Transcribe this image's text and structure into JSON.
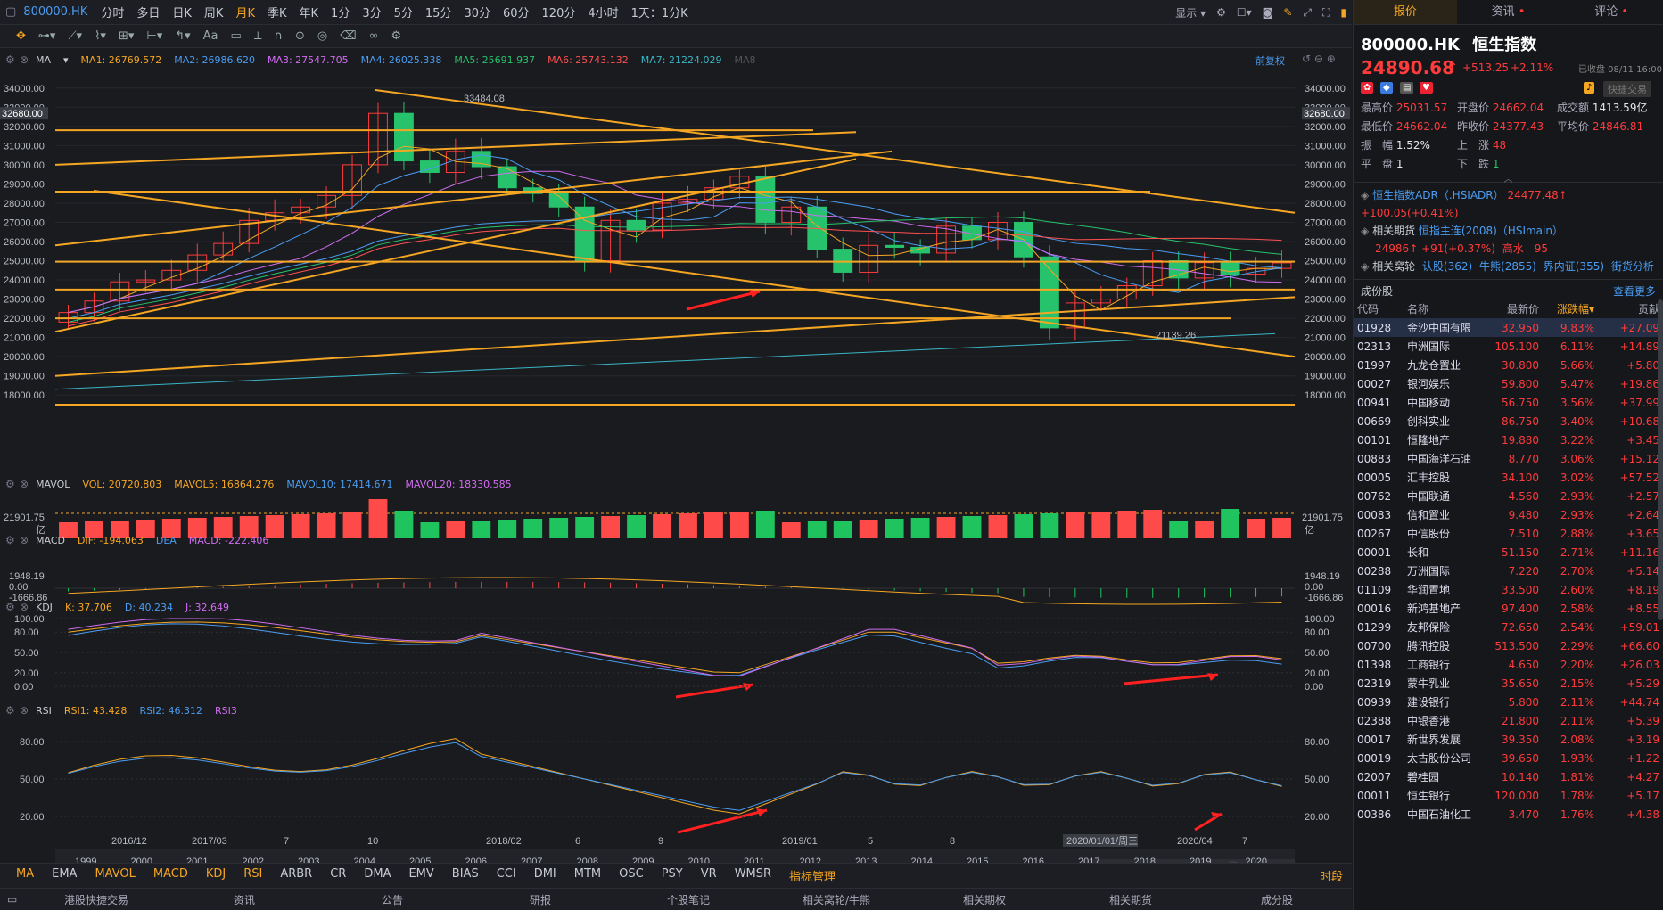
{
  "toolbar": {
    "code": "800000.HK",
    "periods": [
      "分时",
      "多日",
      "日K",
      "周K",
      "月K",
      "季K",
      "年K",
      "1分",
      "3分",
      "5分",
      "15分",
      "30分",
      "60分",
      "120分",
      "4小时",
      "1天：1分K"
    ],
    "active_period": "月K",
    "display_label": "显示"
  },
  "main_pane": {
    "label": "MA",
    "ma": [
      {
        "name": "MA1",
        "value": "26769.572",
        "color": "#f5a623"
      },
      {
        "name": "MA2",
        "value": "26986.620",
        "color": "#4a9df2"
      },
      {
        "name": "MA3",
        "value": "27547.705",
        "color": "#d06df0"
      },
      {
        "name": "MA4",
        "value": "26025.338",
        "color": "#4a9df2"
      },
      {
        "name": "MA5",
        "value": "25691.937",
        "color": "#27c26c"
      },
      {
        "name": "MA6",
        "value": "25743.132",
        "color": "#ff5050"
      },
      {
        "name": "MA7",
        "value": "21224.029",
        "color": "#39b6c6"
      },
      {
        "name": "MA8",
        "value": "",
        "color": "#555"
      }
    ],
    "adjust": "前复权",
    "y_ticks": [
      "34000.00",
      "33000.00",
      "32000.00",
      "31000.00",
      "30000.00",
      "29000.00",
      "28000.00",
      "27000.00",
      "26000.00",
      "25000.00",
      "24000.00",
      "23000.00",
      "22000.00",
      "21000.00",
      "20000.00",
      "19000.00",
      "18000.00"
    ],
    "current_price_tag": "32680.00",
    "high_label": "33484.08",
    "low_label": "21139.26"
  },
  "mavol_pane": {
    "label": "MAVOL",
    "items": [
      {
        "name": "VOL",
        "value": "20720.803",
        "color": "#f5a623"
      },
      {
        "name": "MAVOL5",
        "value": "16864.276",
        "color": "#f5a623"
      },
      {
        "name": "MAVOL10",
        "value": "17414.671",
        "color": "#4a9df2"
      },
      {
        "name": "MAVOL20",
        "value": "18330.585",
        "color": "#d06df0"
      }
    ],
    "axis_value": "21901.75",
    "unit": "亿"
  },
  "macd_pane": {
    "label": "MACD",
    "items": [
      {
        "name": "DIF",
        "value": "-194.063",
        "color": "#f5a623"
      },
      {
        "name": "DEA",
        "value": "",
        "color": "#4a9df2"
      },
      {
        "name": "MACD",
        "value": "-222.406",
        "color": "#d06df0"
      }
    ],
    "ticks": [
      "1948.19",
      "0.00",
      "-1666.86"
    ]
  },
  "kdj_pane": {
    "label": "KDJ",
    "items": [
      {
        "name": "K",
        "value": "37.706",
        "color": "#f5a623"
      },
      {
        "name": "D",
        "value": "40.234",
        "color": "#4a9df2"
      },
      {
        "name": "J",
        "value": "32.649",
        "color": "#d06df0"
      }
    ],
    "ticks": [
      "100.00",
      "80.00",
      "50.00",
      "20.00",
      "0.00"
    ]
  },
  "rsi_pane": {
    "label": "RSI",
    "items": [
      {
        "name": "RSI1",
        "value": "43.428",
        "color": "#f5a623"
      },
      {
        "name": "RSI2",
        "value": "46.312",
        "color": "#4a9df2"
      },
      {
        "name": "RSI3",
        "value": "",
        "color": "#d06df0"
      }
    ],
    "ticks": [
      "80.00",
      "50.00",
      "20.00"
    ]
  },
  "x_axis": {
    "labels": [
      "2016/12",
      "2017/03",
      "7",
      "10",
      "2018/02",
      "6",
      "9",
      "2019/01",
      "5",
      "8",
      "2020/01/01/周三",
      "2020/04",
      "7"
    ],
    "years": [
      "1999",
      "2000",
      "2001",
      "2002",
      "2003",
      "2004",
      "2005",
      "2006",
      "2007",
      "2008",
      "2009",
      "2010",
      "2011",
      "2012",
      "2013",
      "2014",
      "2015",
      "2016",
      "2017",
      "2018",
      "2019",
      "2020"
    ]
  },
  "indicators": {
    "items": [
      "MA",
      "EMA",
      "MAVOL",
      "MACD",
      "KDJ",
      "RSI",
      "ARBR",
      "CR",
      "DMA",
      "EMV",
      "BIAS",
      "CCI",
      "DMI",
      "MTM",
      "OSC",
      "PSY",
      "VR",
      "WMSR",
      "指标管理"
    ],
    "active": [
      "MA",
      "MAVOL",
      "MACD",
      "KDJ",
      "RSI",
      "指标管理"
    ],
    "right": "时段"
  },
  "footer": [
    "港股快捷交易",
    "资讯",
    "公告",
    "研报",
    "个股笔记",
    "相关窝轮/牛熊",
    "相关期权",
    "相关期货",
    "成分股"
  ],
  "panel": {
    "tabs": [
      "报价",
      "资讯",
      "评论"
    ],
    "code": "800000.HK",
    "name": "恒生指数",
    "price": "24890.68",
    "change": "+513.25",
    "pct": "+2.11%",
    "closed": "已收盘 08/11 16:00",
    "quick_trade": "快捷交易",
    "stats": [
      [
        "最高价",
        "25031.57",
        "开盘价",
        "24662.04",
        "成交额",
        "1413.59亿"
      ],
      [
        "最低价",
        "24662.04",
        "昨收价",
        "24377.43",
        "平均价",
        "24846.81"
      ],
      [
        "振　幅",
        "1.52%",
        "上　涨",
        "48",
        "",
        ""
      ],
      [
        "平　盘",
        "1",
        "下　跌",
        "1",
        "",
        ""
      ]
    ],
    "adr_label": "恒生指数ADR（.HSIADR）",
    "adr_value": "24477.48",
    "adr_change": "+100.05(+0.41%)",
    "futures_label": "相关期货",
    "futures_name": "恒指主连(2008)（HSImain）",
    "futures_value": "24986",
    "futures_change": "+91(+0.37%)",
    "futures_premium": "高水　95",
    "warrants_label": "相关窝轮",
    "warrants": [
      "认股(362)",
      "牛熊(2855)",
      "界内证(355)",
      "街货分析"
    ],
    "constituents_label": "成份股",
    "more": "查看更多",
    "headers": [
      "代码",
      "名称",
      "最新价",
      "涨跌幅",
      "贡献"
    ],
    "rows": [
      [
        "01928",
        "金沙中国有限",
        "32.950",
        "9.83%",
        "+27.09"
      ],
      [
        "02313",
        "申洲国际",
        "105.100",
        "6.11%",
        "+14.89"
      ],
      [
        "01997",
        "九龙仓置业",
        "30.800",
        "5.66%",
        "+5.80"
      ],
      [
        "00027",
        "银河娱乐",
        "59.800",
        "5.47%",
        "+19.86"
      ],
      [
        "00941",
        "中国移动",
        "56.750",
        "3.56%",
        "+37.99"
      ],
      [
        "00669",
        "创科实业",
        "86.750",
        "3.40%",
        "+10.68"
      ],
      [
        "00101",
        "恒隆地产",
        "19.880",
        "3.22%",
        "+3.45"
      ],
      [
        "00883",
        "中国海洋石油",
        "8.770",
        "3.06%",
        "+15.12"
      ],
      [
        "00005",
        "汇丰控股",
        "34.100",
        "3.02%",
        "+57.52"
      ],
      [
        "00762",
        "中国联通",
        "4.560",
        "2.93%",
        "+2.57"
      ],
      [
        "00083",
        "信和置业",
        "9.480",
        "2.93%",
        "+2.64"
      ],
      [
        "00267",
        "中信股份",
        "7.510",
        "2.88%",
        "+3.65"
      ],
      [
        "00001",
        "长和",
        "51.150",
        "2.71%",
        "+11.16"
      ],
      [
        "00288",
        "万洲国际",
        "7.220",
        "2.70%",
        "+5.14"
      ],
      [
        "01109",
        "华润置地",
        "33.500",
        "2.60%",
        "+8.19"
      ],
      [
        "00016",
        "新鸿基地产",
        "97.400",
        "2.58%",
        "+8.55"
      ],
      [
        "01299",
        "友邦保险",
        "72.650",
        "2.54%",
        "+59.01"
      ],
      [
        "00700",
        "腾讯控股",
        "513.500",
        "2.29%",
        "+66.60"
      ],
      [
        "01398",
        "工商银行",
        "4.650",
        "2.20%",
        "+26.03"
      ],
      [
        "02319",
        "蒙牛乳业",
        "35.650",
        "2.15%",
        "+5.29"
      ],
      [
        "00939",
        "建设银行",
        "5.800",
        "2.11%",
        "+44.74"
      ],
      [
        "02388",
        "中银香港",
        "21.800",
        "2.11%",
        "+5.39"
      ],
      [
        "00017",
        "新世界发展",
        "39.350",
        "2.08%",
        "+3.19"
      ],
      [
        "00019",
        "太古股份公司",
        "39.650",
        "1.93%",
        "+1.22"
      ],
      [
        "02007",
        "碧桂园",
        "10.140",
        "1.81%",
        "+4.27"
      ],
      [
        "00011",
        "恒生银行",
        "120.000",
        "1.78%",
        "+5.17"
      ],
      [
        "00386",
        "中国石油化工",
        "3.470",
        "1.76%",
        "+4.38"
      ]
    ]
  },
  "colors": {
    "up": "#ff3b3b",
    "down": "#27c26c",
    "accent": "#f5a623",
    "trendline": "#f5a623"
  }
}
